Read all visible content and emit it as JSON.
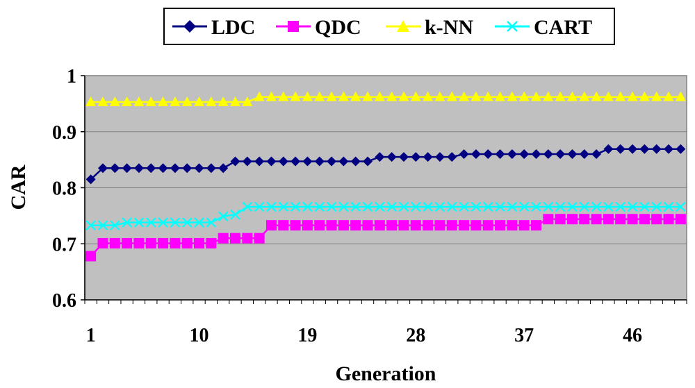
{
  "chart_data": {
    "type": "line",
    "title": "",
    "xlabel": "Generation",
    "ylabel": "CAR",
    "x": [
      1,
      2,
      3,
      4,
      5,
      6,
      7,
      8,
      9,
      10,
      11,
      12,
      13,
      14,
      15,
      16,
      17,
      18,
      19,
      20,
      21,
      22,
      23,
      24,
      25,
      26,
      27,
      28,
      29,
      30,
      31,
      32,
      33,
      34,
      35,
      36,
      37,
      38,
      39,
      40,
      41,
      42,
      43,
      44,
      45,
      46,
      47,
      48,
      49,
      50
    ],
    "x_tick_labels": [
      "1",
      "10",
      "19",
      "28",
      "37",
      "46"
    ],
    "x_tick_values": [
      1,
      10,
      19,
      28,
      37,
      46
    ],
    "ylim": [
      0.6,
      1.0
    ],
    "y_tick_labels": [
      "0.6",
      "0.7",
      "0.8",
      "0.9",
      "1"
    ],
    "y_tick_values": [
      0.6,
      0.7,
      0.8,
      0.9,
      1.0
    ],
    "grid": true,
    "legend_position": "top",
    "series": [
      {
        "name": "LDC",
        "color": "#000080",
        "marker": "diamond",
        "values": [
          0.815,
          0.835,
          0.835,
          0.835,
          0.835,
          0.835,
          0.835,
          0.835,
          0.835,
          0.835,
          0.835,
          0.835,
          0.847,
          0.847,
          0.847,
          0.847,
          0.847,
          0.847,
          0.847,
          0.847,
          0.847,
          0.847,
          0.847,
          0.847,
          0.855,
          0.855,
          0.855,
          0.855,
          0.855,
          0.855,
          0.855,
          0.86,
          0.86,
          0.86,
          0.86,
          0.86,
          0.86,
          0.86,
          0.86,
          0.86,
          0.86,
          0.86,
          0.86,
          0.869,
          0.869,
          0.869,
          0.869,
          0.869,
          0.869,
          0.869
        ]
      },
      {
        "name": "QDC",
        "color": "#ff00ff",
        "marker": "square",
        "values": [
          0.678,
          0.701,
          0.701,
          0.701,
          0.701,
          0.701,
          0.701,
          0.701,
          0.701,
          0.701,
          0.701,
          0.71,
          0.71,
          0.71,
          0.71,
          0.733,
          0.733,
          0.733,
          0.733,
          0.733,
          0.733,
          0.733,
          0.733,
          0.733,
          0.733,
          0.733,
          0.733,
          0.733,
          0.733,
          0.733,
          0.733,
          0.733,
          0.733,
          0.733,
          0.733,
          0.733,
          0.733,
          0.733,
          0.744,
          0.744,
          0.744,
          0.744,
          0.744,
          0.744,
          0.744,
          0.744,
          0.744,
          0.744,
          0.744,
          0.744
        ]
      },
      {
        "name": "k-NN",
        "color": "#ffff00",
        "marker": "triangle",
        "values": [
          0.953,
          0.953,
          0.953,
          0.953,
          0.953,
          0.953,
          0.953,
          0.953,
          0.953,
          0.953,
          0.953,
          0.953,
          0.953,
          0.953,
          0.962,
          0.962,
          0.962,
          0.962,
          0.962,
          0.962,
          0.962,
          0.962,
          0.962,
          0.962,
          0.962,
          0.962,
          0.962,
          0.962,
          0.962,
          0.962,
          0.962,
          0.962,
          0.962,
          0.962,
          0.962,
          0.962,
          0.962,
          0.962,
          0.962,
          0.962,
          0.962,
          0.962,
          0.962,
          0.962,
          0.962,
          0.962,
          0.962,
          0.962,
          0.962,
          0.962
        ]
      },
      {
        "name": "CART",
        "color": "#00ffff",
        "marker": "x",
        "values": [
          0.733,
          0.733,
          0.733,
          0.738,
          0.738,
          0.738,
          0.738,
          0.738,
          0.738,
          0.738,
          0.738,
          0.749,
          0.752,
          0.766,
          0.766,
          0.766,
          0.766,
          0.766,
          0.766,
          0.766,
          0.766,
          0.766,
          0.766,
          0.766,
          0.766,
          0.766,
          0.766,
          0.766,
          0.766,
          0.766,
          0.766,
          0.766,
          0.766,
          0.766,
          0.766,
          0.766,
          0.766,
          0.766,
          0.766,
          0.766,
          0.766,
          0.766,
          0.766,
          0.766,
          0.766,
          0.766,
          0.766,
          0.766,
          0.766,
          0.766
        ]
      }
    ]
  }
}
